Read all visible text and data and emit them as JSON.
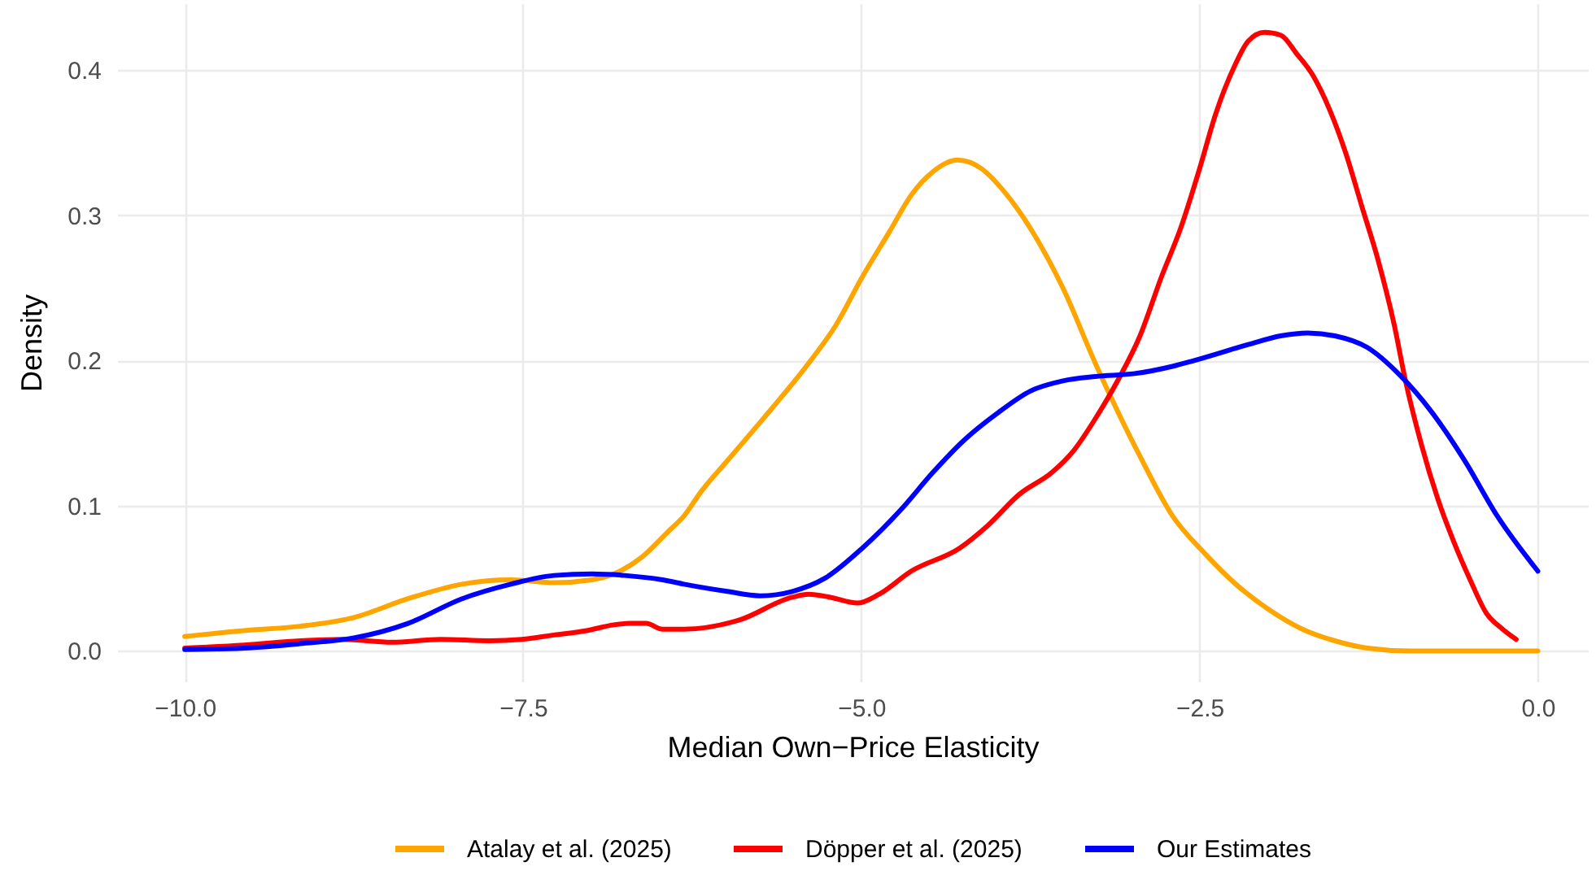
{
  "chart_data": {
    "type": "line",
    "xlabel": "Median Own−Price Elasticity",
    "ylabel": "Density",
    "xlim": [
      -10.5,
      0.37
    ],
    "ylim": [
      -0.021,
      0.446
    ],
    "xticks": [
      {
        "value": -10,
        "label": "−10.0"
      },
      {
        "value": -7.5,
        "label": "−7.5"
      },
      {
        "value": -5,
        "label": "−5.0"
      },
      {
        "value": -2.5,
        "label": "−2.5"
      },
      {
        "value": 0,
        "label": "0.0"
      }
    ],
    "yticks": [
      {
        "value": 0,
        "label": "0.0"
      },
      0.1,
      0.2,
      0.3,
      0.4
    ],
    "grid": true,
    "legend": "bottom",
    "line_style": "solid",
    "series": [
      {
        "name": "Atalay et al. (2025)",
        "color": "#ffa500",
        "x": [
          -10,
          -9.56,
          -9.15,
          -8.75,
          -8.35,
          -7.95,
          -7.59,
          -7.27,
          -6.99,
          -6.83,
          -6.63,
          -6.43,
          -6.31,
          -6.19,
          -5.99,
          -5.67,
          -5.39,
          -5.19,
          -4.99,
          -4.79,
          -4.63,
          -4.47,
          -4.29,
          -4.11,
          -3.95,
          -3.75,
          -3.51,
          -3.27,
          -3.1,
          -2.94,
          -2.7,
          -2.46,
          -2.22,
          -1.98,
          -1.74,
          -1.5,
          -1.26,
          -0.94,
          -0.5,
          0
        ],
        "values": [
          0.01,
          0.014,
          0.017,
          0.023,
          0.036,
          0.046,
          0.049,
          0.047,
          0.049,
          0.053,
          0.064,
          0.082,
          0.093,
          0.109,
          0.131,
          0.166,
          0.198,
          0.224,
          0.258,
          0.289,
          0.314,
          0.33,
          0.338,
          0.332,
          0.317,
          0.291,
          0.25,
          0.198,
          0.164,
          0.134,
          0.093,
          0.067,
          0.045,
          0.028,
          0.015,
          0.007,
          0.002,
          0.0,
          0.0,
          0.0
        ]
      },
      {
        "name": "Döpper et al. (2025)",
        "color": "#ff0000",
        "x": [
          -10,
          -9.56,
          -9.15,
          -8.83,
          -8.47,
          -8.11,
          -7.75,
          -7.51,
          -7.27,
          -7.03,
          -6.83,
          -6.71,
          -6.59,
          -6.47,
          -6.31,
          -5.91,
          -5.51,
          -5.39,
          -5.23,
          -5.03,
          -4.87,
          -4.63,
          -4.27,
          -4.07,
          -3.83,
          -3.59,
          -3.43,
          -3.27,
          -3.1,
          -2.94,
          -2.78,
          -2.64,
          -2.5,
          -2.38,
          -2.24,
          -2.14,
          -2.02,
          -1.9,
          -1.78,
          -1.66,
          -1.54,
          -1.42,
          -1.3,
          -1.18,
          -1.06,
          -0.98,
          -0.86,
          -0.74,
          -0.62,
          -0.5,
          -0.38,
          -0.26,
          -0.16
        ],
        "values": [
          0.002,
          0.004,
          0.007,
          0.008,
          0.006,
          0.008,
          0.007,
          0.008,
          0.011,
          0.014,
          0.018,
          0.019,
          0.019,
          0.015,
          0.015,
          0.021,
          0.037,
          0.039,
          0.037,
          0.033,
          0.039,
          0.055,
          0.071,
          0.086,
          0.108,
          0.123,
          0.138,
          0.16,
          0.187,
          0.217,
          0.258,
          0.291,
          0.332,
          0.37,
          0.403,
          0.42,
          0.426,
          0.424,
          0.411,
          0.396,
          0.373,
          0.343,
          0.306,
          0.269,
          0.224,
          0.187,
          0.142,
          0.105,
          0.075,
          0.049,
          0.026,
          0.015,
          0.008
        ]
      },
      {
        "name": "Our Estimates",
        "color": "#0000ff",
        "x": [
          -10,
          -9.56,
          -9.15,
          -8.75,
          -8.35,
          -7.95,
          -7.59,
          -7.27,
          -6.99,
          -6.75,
          -6.47,
          -6.31,
          -5.99,
          -5.75,
          -5.51,
          -5.27,
          -4.99,
          -4.71,
          -4.47,
          -4.23,
          -3.99,
          -3.75,
          -3.51,
          -3.27,
          -2.98,
          -2.7,
          -2.54,
          -2.14,
          -1.9,
          -1.7,
          -1.5,
          -1.26,
          -1.02,
          -0.78,
          -0.54,
          -0.3,
          0
        ],
        "values": [
          0.001,
          0.002,
          0.005,
          0.009,
          0.019,
          0.036,
          0.046,
          0.052,
          0.053,
          0.052,
          0.049,
          0.046,
          0.041,
          0.038,
          0.041,
          0.05,
          0.071,
          0.097,
          0.123,
          0.146,
          0.164,
          0.179,
          0.186,
          0.189,
          0.191,
          0.196,
          0.2,
          0.211,
          0.217,
          0.219,
          0.217,
          0.209,
          0.19,
          0.164,
          0.131,
          0.093,
          0.055
        ]
      }
    ]
  }
}
